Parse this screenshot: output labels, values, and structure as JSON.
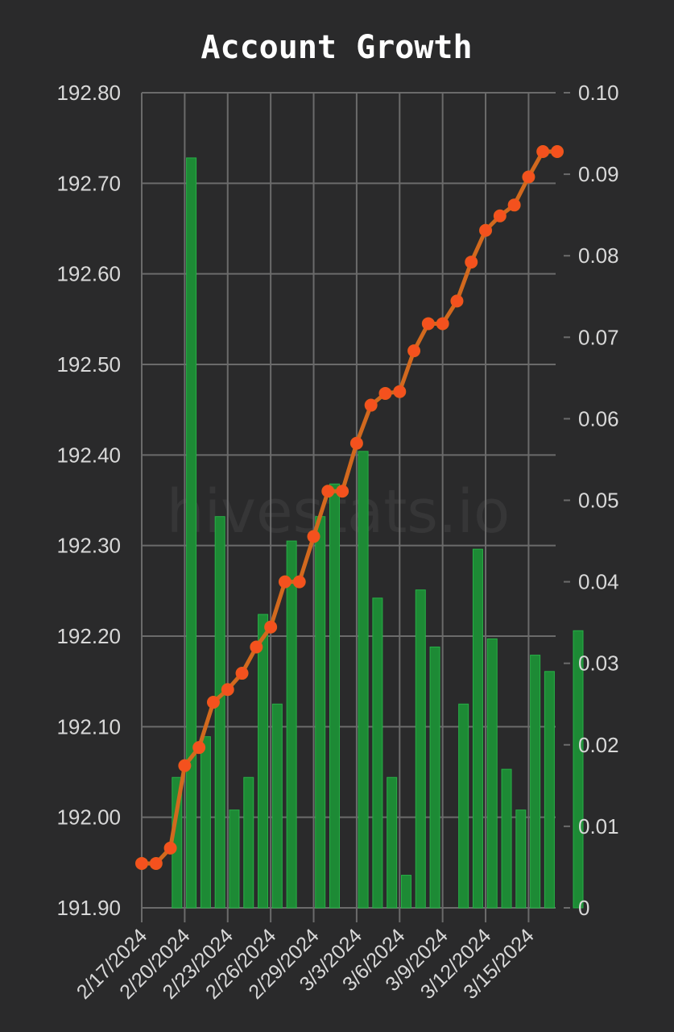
{
  "chart_data": {
    "type": "bar+line",
    "title": "Account Growth",
    "watermark": "hivestats.io",
    "colors": {
      "background": "#2a2a2b",
      "grid": "#6b6b6b",
      "bar": "#1d8a35",
      "bar_edge": "#27b046",
      "line": "#d2691e",
      "marker": "#f4511e",
      "text": "#d8d8d8"
    },
    "grid": true,
    "left_axis": {
      "ylim": [
        191.9,
        192.8
      ],
      "ticks": [
        "191.90",
        "192.00",
        "192.10",
        "192.20",
        "192.30",
        "192.40",
        "192.50",
        "192.60",
        "192.70",
        "192.80"
      ]
    },
    "right_axis": {
      "ylim": [
        0,
        0.1
      ],
      "ticks": [
        "0",
        "0.01",
        "0.02",
        "0.03",
        "0.04",
        "0.05",
        "0.06",
        "0.07",
        "0.08",
        "0.09",
        "0.10"
      ]
    },
    "x_ticks": [
      "2/17/2024",
      "2/20/2024",
      "2/23/2024",
      "2/26/2024",
      "2/29/2024",
      "3/3/2024",
      "3/6/2024",
      "3/9/2024",
      "3/12/2024",
      "3/15/2024"
    ],
    "x_dates": [
      "2/17/2024",
      "2/18/2024",
      "2/19/2024",
      "2/20/2024",
      "2/21/2024",
      "2/22/2024",
      "2/23/2024",
      "2/24/2024",
      "2/25/2024",
      "2/26/2024",
      "2/27/2024",
      "2/28/2024",
      "2/29/2024",
      "3/1/2024",
      "3/2/2024",
      "3/3/2024",
      "3/4/2024",
      "3/5/2024",
      "3/6/2024",
      "3/7/2024",
      "3/8/2024",
      "3/9/2024",
      "3/10/2024",
      "3/11/2024",
      "3/12/2024",
      "3/13/2024",
      "3/14/2024",
      "3/15/2024",
      "3/16/2024",
      "3/17/2024"
    ],
    "series": [
      {
        "type": "bar",
        "axis": "right",
        "values": [
          null,
          0.016,
          0.092,
          0.021,
          0.048,
          0.012,
          0.016,
          0.036,
          0.025,
          0.045,
          null,
          0.048,
          0.052,
          null,
          0.056,
          0.038,
          0.016,
          0.004,
          0.039,
          0.032,
          null,
          0.025,
          0.044,
          0.033,
          0.017,
          0.012,
          0.031,
          0.029,
          null,
          0.034
        ]
      },
      {
        "type": "line",
        "axis": "left",
        "values": [
          191.949,
          191.949,
          191.966,
          192.057,
          192.077,
          192.127,
          192.141,
          192.159,
          192.188,
          192.21,
          192.26,
          192.26,
          192.31,
          192.36,
          192.36,
          192.413,
          192.455,
          192.468,
          192.47,
          192.515,
          192.545,
          192.545,
          192.57,
          192.613,
          192.648,
          192.664,
          192.676,
          192.707,
          192.735,
          192.735
        ]
      }
    ]
  }
}
